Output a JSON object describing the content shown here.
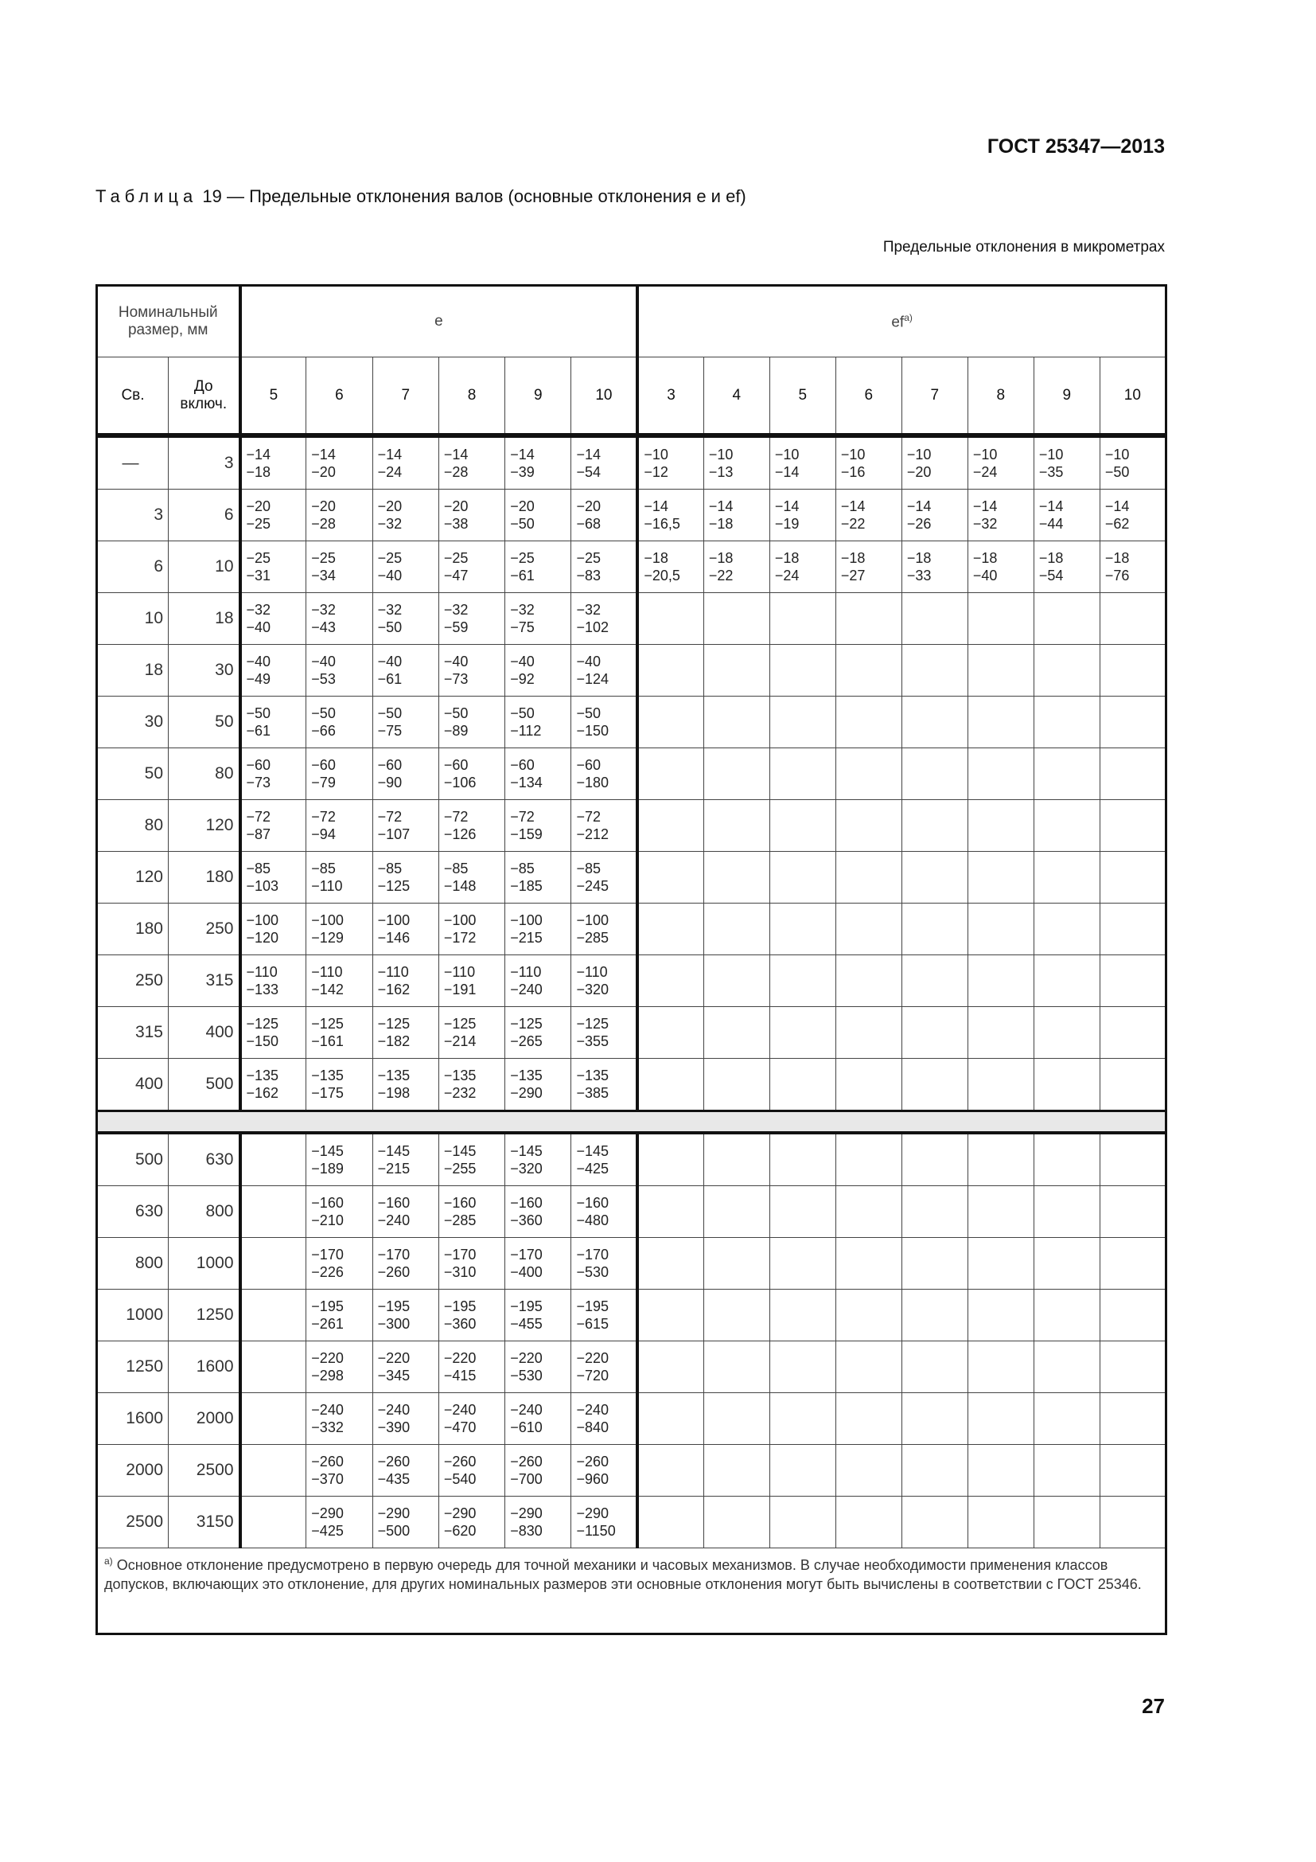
{
  "header": {
    "standard": "ГОСТ 25347—2013"
  },
  "caption": {
    "prefix": "Таблица",
    "number": "19",
    "text": "— Предельные отклонения валов (основные отклонения e и ef)"
  },
  "units": "Предельные отклонения в микрометрах",
  "table": {
    "nominal_header": "Номинальный размер, мм",
    "from_header": "Св.",
    "to_header": "До включ.",
    "group_e": "e",
    "group_ef": "ef",
    "group_ef_note": "а)",
    "e_grades": [
      "5",
      "6",
      "7",
      "8",
      "9",
      "10"
    ],
    "ef_grades": [
      "3",
      "4",
      "5",
      "6",
      "7",
      "8",
      "9",
      "10"
    ],
    "rows": [
      {
        "from": "—",
        "to": "3",
        "e": [
          [
            "−14",
            "−18"
          ],
          [
            "−14",
            "−20"
          ],
          [
            "−14",
            "−24"
          ],
          [
            "−14",
            "−28"
          ],
          [
            "−14",
            "−39"
          ],
          [
            "−14",
            "−54"
          ]
        ],
        "ef": [
          [
            "−10",
            "−12"
          ],
          [
            "−10",
            "−13"
          ],
          [
            "−10",
            "−14"
          ],
          [
            "−10",
            "−16"
          ],
          [
            "−10",
            "−20"
          ],
          [
            "−10",
            "−24"
          ],
          [
            "−10",
            "−35"
          ],
          [
            "−10",
            "−50"
          ]
        ]
      },
      {
        "from": "3",
        "to": "6",
        "e": [
          [
            "−20",
            "−25"
          ],
          [
            "−20",
            "−28"
          ],
          [
            "−20",
            "−32"
          ],
          [
            "−20",
            "−38"
          ],
          [
            "−20",
            "−50"
          ],
          [
            "−20",
            "−68"
          ]
        ],
        "ef": [
          [
            "−14",
            "−16,5"
          ],
          [
            "−14",
            "−18"
          ],
          [
            "−14",
            "−19"
          ],
          [
            "−14",
            "−22"
          ],
          [
            "−14",
            "−26"
          ],
          [
            "−14",
            "−32"
          ],
          [
            "−14",
            "−44"
          ],
          [
            "−14",
            "−62"
          ]
        ]
      },
      {
        "from": "6",
        "to": "10",
        "e": [
          [
            "−25",
            "−31"
          ],
          [
            "−25",
            "−34"
          ],
          [
            "−25",
            "−40"
          ],
          [
            "−25",
            "−47"
          ],
          [
            "−25",
            "−61"
          ],
          [
            "−25",
            "−83"
          ]
        ],
        "ef": [
          [
            "−18",
            "−20,5"
          ],
          [
            "−18",
            "−22"
          ],
          [
            "−18",
            "−24"
          ],
          [
            "−18",
            "−27"
          ],
          [
            "−18",
            "−33"
          ],
          [
            "−18",
            "−40"
          ],
          [
            "−18",
            "−54"
          ],
          [
            "−18",
            "−76"
          ]
        ]
      },
      {
        "from": "10",
        "to": "18",
        "e": [
          [
            "−32",
            "−40"
          ],
          [
            "−32",
            "−43"
          ],
          [
            "−32",
            "−50"
          ],
          [
            "−32",
            "−59"
          ],
          [
            "−32",
            "−75"
          ],
          [
            "−32",
            "−102"
          ]
        ]
      },
      {
        "from": "18",
        "to": "30",
        "e": [
          [
            "−40",
            "−49"
          ],
          [
            "−40",
            "−53"
          ],
          [
            "−40",
            "−61"
          ],
          [
            "−40",
            "−73"
          ],
          [
            "−40",
            "−92"
          ],
          [
            "−40",
            "−124"
          ]
        ]
      },
      {
        "from": "30",
        "to": "50",
        "e": [
          [
            "−50",
            "−61"
          ],
          [
            "−50",
            "−66"
          ],
          [
            "−50",
            "−75"
          ],
          [
            "−50",
            "−89"
          ],
          [
            "−50",
            "−112"
          ],
          [
            "−50",
            "−150"
          ]
        ]
      },
      {
        "from": "50",
        "to": "80",
        "e": [
          [
            "−60",
            "−73"
          ],
          [
            "−60",
            "−79"
          ],
          [
            "−60",
            "−90"
          ],
          [
            "−60",
            "−106"
          ],
          [
            "−60",
            "−134"
          ],
          [
            "−60",
            "−180"
          ]
        ]
      },
      {
        "from": "80",
        "to": "120",
        "e": [
          [
            "−72",
            "−87"
          ],
          [
            "−72",
            "−94"
          ],
          [
            "−72",
            "−107"
          ],
          [
            "−72",
            "−126"
          ],
          [
            "−72",
            "−159"
          ],
          [
            "−72",
            "−212"
          ]
        ]
      },
      {
        "from": "120",
        "to": "180",
        "e": [
          [
            "−85",
            "−103"
          ],
          [
            "−85",
            "−110"
          ],
          [
            "−85",
            "−125"
          ],
          [
            "−85",
            "−148"
          ],
          [
            "−85",
            "−185"
          ],
          [
            "−85",
            "−245"
          ]
        ]
      },
      {
        "from": "180",
        "to": "250",
        "e": [
          [
            "−100",
            "−120"
          ],
          [
            "−100",
            "−129"
          ],
          [
            "−100",
            "−146"
          ],
          [
            "−100",
            "−172"
          ],
          [
            "−100",
            "−215"
          ],
          [
            "−100",
            "−285"
          ]
        ]
      },
      {
        "from": "250",
        "to": "315",
        "e": [
          [
            "−110",
            "−133"
          ],
          [
            "−110",
            "−142"
          ],
          [
            "−110",
            "−162"
          ],
          [
            "−110",
            "−191"
          ],
          [
            "−110",
            "−240"
          ],
          [
            "−110",
            "−320"
          ]
        ]
      },
      {
        "from": "315",
        "to": "400",
        "e": [
          [
            "−125",
            "−150"
          ],
          [
            "−125",
            "−161"
          ],
          [
            "−125",
            "−182"
          ],
          [
            "−125",
            "−214"
          ],
          [
            "−125",
            "−265"
          ],
          [
            "−125",
            "−355"
          ]
        ]
      },
      {
        "from": "400",
        "to": "500",
        "e": [
          [
            "−135",
            "−162"
          ],
          [
            "−135",
            "−175"
          ],
          [
            "−135",
            "−198"
          ],
          [
            "−135",
            "−232"
          ],
          [
            "−135",
            "−290"
          ],
          [
            "−135",
            "−385"
          ]
        ]
      }
    ],
    "rows_large": [
      {
        "from": "500",
        "to": "630",
        "e": [
          null,
          [
            "−145",
            "−189"
          ],
          [
            "−145",
            "−215"
          ],
          [
            "−145",
            "−255"
          ],
          [
            "−145",
            "−320"
          ],
          [
            "−145",
            "−425"
          ]
        ]
      },
      {
        "from": "630",
        "to": "800",
        "e": [
          null,
          [
            "−160",
            "−210"
          ],
          [
            "−160",
            "−240"
          ],
          [
            "−160",
            "−285"
          ],
          [
            "−160",
            "−360"
          ],
          [
            "−160",
            "−480"
          ]
        ]
      },
      {
        "from": "800",
        "to": "1000",
        "e": [
          null,
          [
            "−170",
            "−226"
          ],
          [
            "−170",
            "−260"
          ],
          [
            "−170",
            "−310"
          ],
          [
            "−170",
            "−400"
          ],
          [
            "−170",
            "−530"
          ]
        ]
      },
      {
        "from": "1000",
        "to": "1250",
        "e": [
          null,
          [
            "−195",
            "−261"
          ],
          [
            "−195",
            "−300"
          ],
          [
            "−195",
            "−360"
          ],
          [
            "−195",
            "−455"
          ],
          [
            "−195",
            "−615"
          ]
        ]
      },
      {
        "from": "1250",
        "to": "1600",
        "e": [
          null,
          [
            "−220",
            "−298"
          ],
          [
            "−220",
            "−345"
          ],
          [
            "−220",
            "−415"
          ],
          [
            "−220",
            "−530"
          ],
          [
            "−220",
            "−720"
          ]
        ]
      },
      {
        "from": "1600",
        "to": "2000",
        "e": [
          null,
          [
            "−240",
            "−332"
          ],
          [
            "−240",
            "−390"
          ],
          [
            "−240",
            "−470"
          ],
          [
            "−240",
            "−610"
          ],
          [
            "−240",
            "−840"
          ]
        ]
      },
      {
        "from": "2000",
        "to": "2500",
        "e": [
          null,
          [
            "−260",
            "−370"
          ],
          [
            "−260",
            "−435"
          ],
          [
            "−260",
            "−540"
          ],
          [
            "−260",
            "−700"
          ],
          [
            "−260",
            "−960"
          ]
        ]
      },
      {
        "from": "2500",
        "to": "3150",
        "e": [
          null,
          [
            "−290",
            "−425"
          ],
          [
            "−290",
            "−500"
          ],
          [
            "−290",
            "−620"
          ],
          [
            "−290",
            "−830"
          ],
          [
            "−290",
            "−1150"
          ]
        ]
      }
    ],
    "footnote_mark": "а)",
    "footnote": "Основное отклонение предусмотрено в первую очередь для точной механики и часовых механизмов. В случае необходимости применения классов допусков, включающих это отклонение, для других номинальных размеров эти основные отклонения могут быть вычислены в соответствии с ГОСТ 25346."
  },
  "page_number": "27"
}
